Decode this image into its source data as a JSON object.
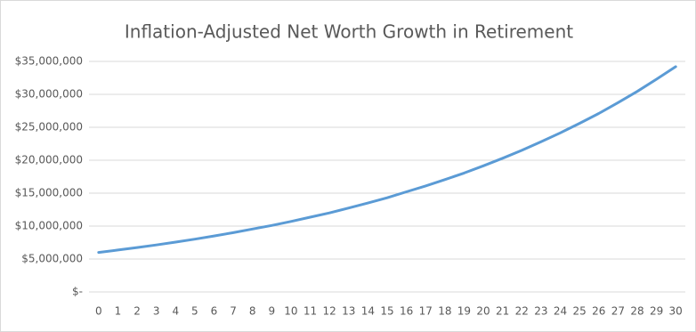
{
  "chart_data": {
    "type": "line",
    "title": "Inflation-Adjusted Net Worth Growth in Retirement",
    "categories": [
      "0",
      "1",
      "2",
      "3",
      "4",
      "5",
      "6",
      "7",
      "8",
      "9",
      "10",
      "11",
      "12",
      "13",
      "14",
      "15",
      "16",
      "17",
      "18",
      "19",
      "20",
      "21",
      "22",
      "23",
      "24",
      "25",
      "26",
      "27",
      "28",
      "29",
      "30"
    ],
    "series": [
      {
        "name": "Net Worth",
        "color": "#5b9bd5",
        "values": [
          6000000,
          6360000,
          6740000,
          7140000,
          7570000,
          8020000,
          8500000,
          9000000,
          9550000,
          10100000,
          10700000,
          11350000,
          12000000,
          12750000,
          13500000,
          14300000,
          15200000,
          16100000,
          17050000,
          18050000,
          19150000,
          20300000,
          21500000,
          22800000,
          24150000,
          25600000,
          27100000,
          28750000,
          30450000,
          32300000,
          34200000
        ]
      }
    ],
    "ylim": [
      0,
      35000000
    ],
    "yticks": [
      {
        "value": 0,
        "label": "$-"
      },
      {
        "value": 5000000,
        "label": "$5,000,000"
      },
      {
        "value": 10000000,
        "label": "$10,000,000"
      },
      {
        "value": 15000000,
        "label": "$15,000,000"
      },
      {
        "value": 20000000,
        "label": "$20,000,000"
      },
      {
        "value": 25000000,
        "label": "$25,000,000"
      },
      {
        "value": 30000000,
        "label": "$30,000,000"
      },
      {
        "value": 35000000,
        "label": "$35,000,000"
      }
    ],
    "grid": true
  }
}
